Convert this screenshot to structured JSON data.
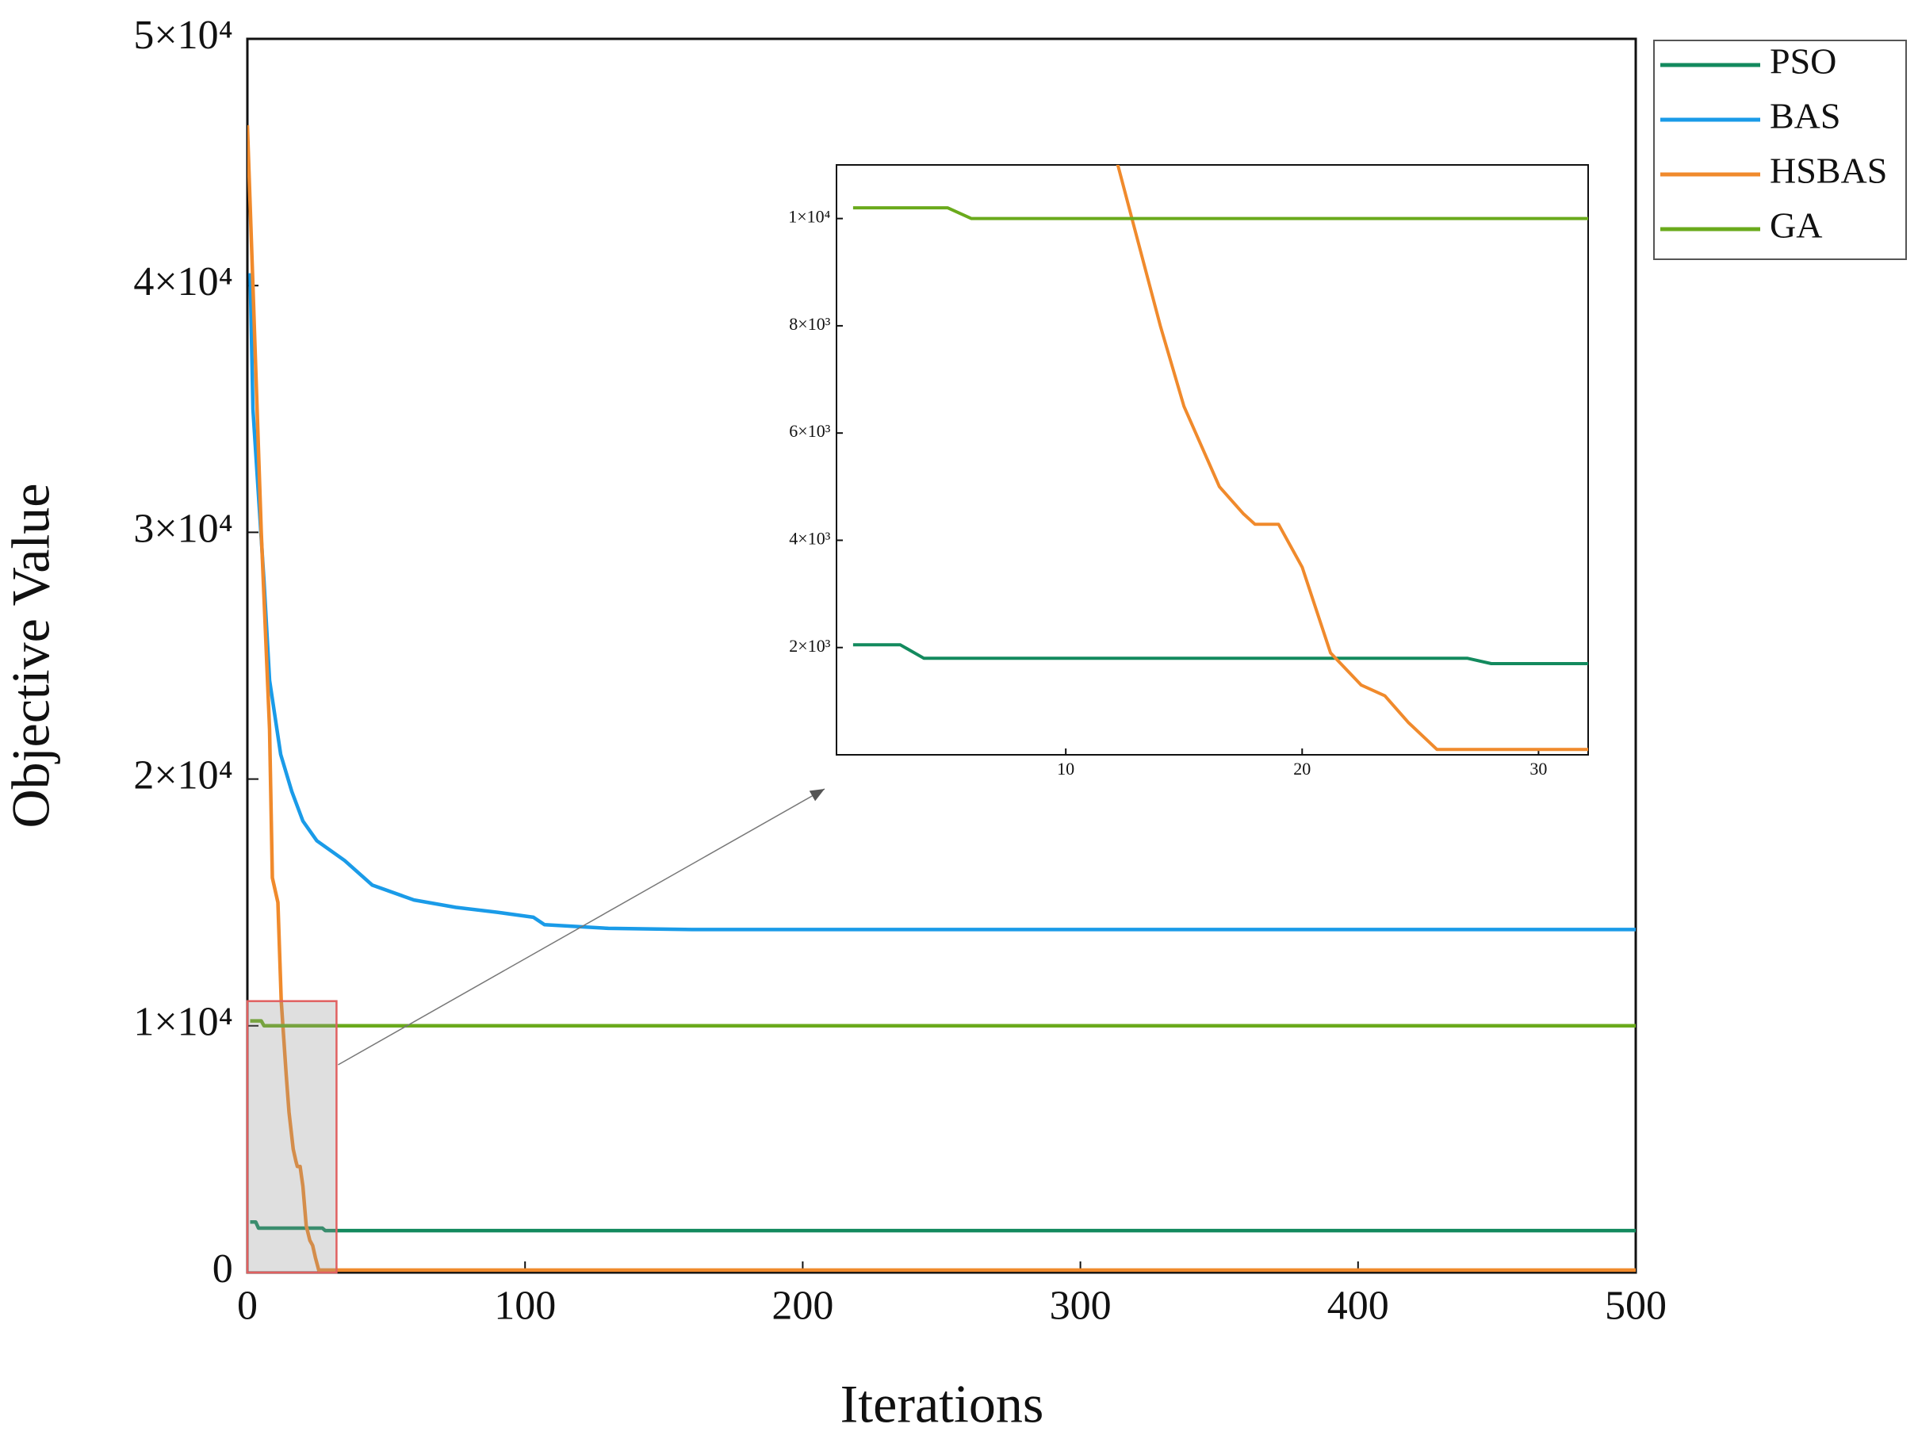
{
  "chart_data": {
    "type": "line",
    "xlabel": "Iterations",
    "ylabel": "Objective Value",
    "xlim": [
      0,
      500
    ],
    "ylim": [
      0,
      50000
    ],
    "xticks": [
      0,
      100,
      200,
      300,
      400,
      500
    ],
    "yticks": [
      0,
      {
        "value": 10000,
        "label": "1×10⁴"
      },
      {
        "value": 20000,
        "label": "2×10⁴"
      },
      {
        "value": 30000,
        "label": "3×10⁴"
      },
      {
        "value": 40000,
        "label": "4×10⁴"
      },
      {
        "value": 50000,
        "label": "5×10⁴"
      }
    ],
    "legend": "outside-top-right",
    "series": [
      {
        "name": "PSO",
        "color": "#138a5e",
        "x": [
          1,
          3,
          4,
          27,
          28,
          500
        ],
        "values": [
          2050,
          2050,
          1800,
          1800,
          1700,
          1700
        ]
      },
      {
        "name": "BAS",
        "color": "#1a9be8",
        "x": [
          1,
          2,
          6,
          8,
          12,
          16,
          20,
          25,
          35,
          45,
          60,
          75,
          90,
          103,
          107,
          130,
          160,
          500
        ],
        "values": [
          40500,
          35000,
          28000,
          24000,
          21000,
          19500,
          18300,
          17500,
          16700,
          15700,
          15100,
          14800,
          14600,
          14400,
          14100,
          13950,
          13900,
          13900
        ]
      },
      {
        "name": "HSBAS",
        "color": "#f08a2c",
        "x": [
          0,
          2,
          5,
          8,
          9,
          11,
          12.2,
          12.8,
          14,
          15,
          16.5,
          17.5,
          18,
          19,
          20,
          21.2,
          22.5,
          23.5,
          24.5,
          25.7,
          500
        ],
        "values": [
          46500,
          40000,
          30000,
          22000,
          16000,
          15000,
          11000,
          10000,
          8000,
          6500,
          5000,
          4500,
          4300,
          4300,
          3500,
          1900,
          1300,
          1100,
          600,
          100,
          100
        ]
      },
      {
        "name": "GA",
        "color": "#6aaa1c",
        "x": [
          1,
          5,
          6,
          500
        ],
        "values": [
          10200,
          10200,
          10000,
          10000
        ]
      }
    ],
    "inset": {
      "xlim": [
        0.3,
        32.1
      ],
      "ylim": [
        0,
        11000
      ],
      "xticks": [
        10,
        20,
        30
      ],
      "yticks": [
        {
          "value": 2000,
          "label": "2×10³"
        },
        {
          "value": 4000,
          "label": "4×10³"
        },
        {
          "value": 6000,
          "label": "6×10³"
        },
        {
          "value": 8000,
          "label": "8×10³"
        },
        {
          "value": 10000,
          "label": "1×10⁴"
        }
      ]
    }
  }
}
